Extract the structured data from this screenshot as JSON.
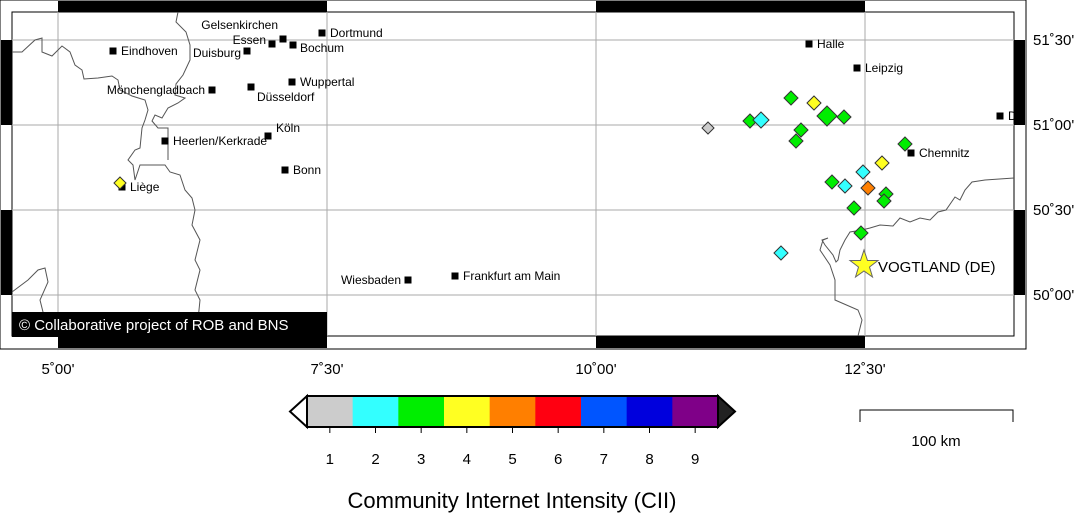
{
  "map": {
    "cities": [
      "Dortmund",
      "Gelsenkirchen",
      "Essen",
      "Bochum",
      "Eindhoven",
      "Duisburg",
      "Halle",
      "Leipzig",
      "Wuppertal",
      "Düsseldorf",
      "Mönchengladbach",
      "Köln",
      "Heerlen/Kerkrade",
      "Bonn",
      "Liège",
      "Chemnitz",
      "D",
      "Wiesbaden",
      "Frankfurt am Main"
    ],
    "epicenter_label": "VOGTLAND (DE)",
    "credit": "© Collaborative project of ROB and BNS",
    "lon_ticks": [
      "5˚00'",
      "7˚30'",
      "10˚00'",
      "12˚30'"
    ],
    "lat_ticks": [
      "51˚30'",
      "51˚00'",
      "50˚30'",
      "50˚00'"
    ],
    "observations_cii": [
      4,
      1,
      3,
      2,
      3,
      4,
      3,
      3,
      3,
      3,
      3,
      4,
      2,
      3,
      2,
      5,
      3,
      3,
      3,
      3,
      2
    ]
  },
  "legend": {
    "title": "Community Internet Intensity (CII)",
    "labels": [
      "1",
      "2",
      "3",
      "4",
      "5",
      "6",
      "7",
      "8",
      "9"
    ],
    "colors": [
      "#cccccc",
      "#33ffff",
      "#00ee00",
      "#ffff22",
      "#ff7f00",
      "#ff0011",
      "#0055ff",
      "#0000dd",
      "#7f0088"
    ]
  },
  "scale": {
    "label": "100 km"
  }
}
